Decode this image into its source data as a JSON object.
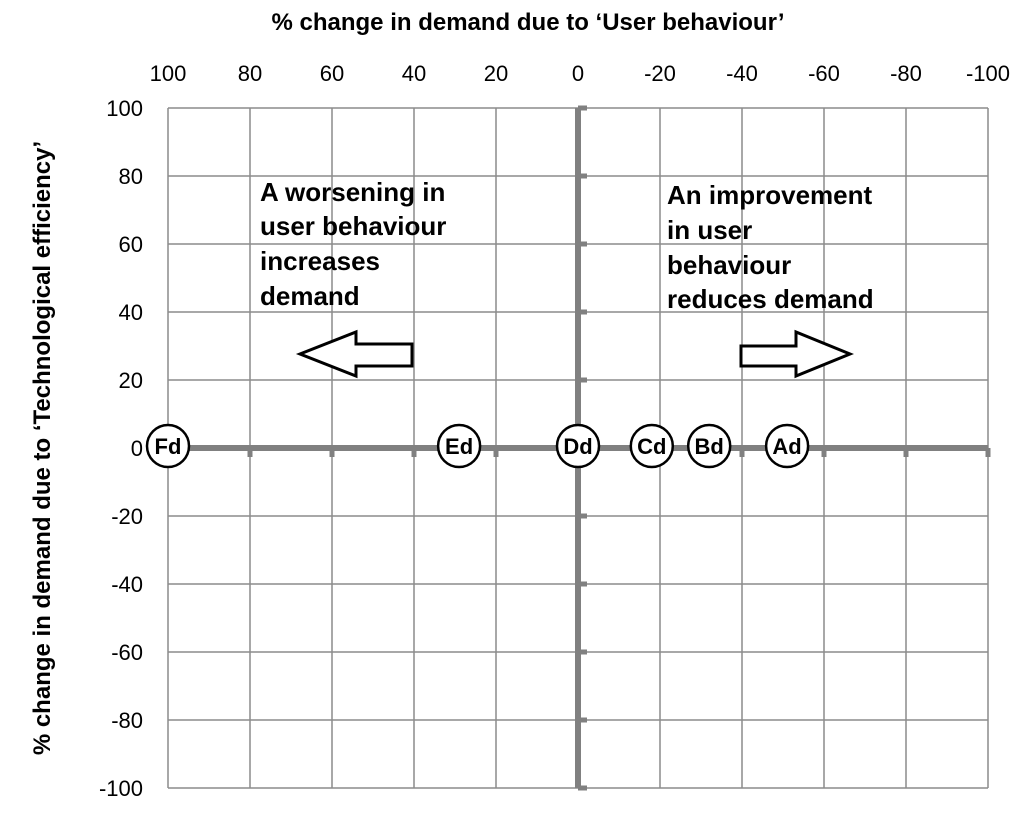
{
  "chart_data": {
    "type": "scatter",
    "xlabel": "% change in demand due to ‘User behaviour’",
    "ylabel": "% change in demand due to ‘Technological efficiency’",
    "xlim": [
      100,
      -100
    ],
    "ylim": [
      -100,
      100
    ],
    "x_ticks": [
      "100",
      "80",
      "60",
      "40",
      "20",
      "0",
      "-20",
      "-40",
      "-60",
      "-80",
      "-100"
    ],
    "y_ticks": [
      "100",
      "80",
      "60",
      "40",
      "20",
      "0",
      "-20",
      "-40",
      "-60",
      "-80",
      "-100"
    ],
    "grid": true,
    "points": [
      {
        "label": "Fd",
        "x": 100,
        "y": 0
      },
      {
        "label": "Ed",
        "x": 29,
        "y": 0
      },
      {
        "label": "Dd",
        "x": 0,
        "y": 0
      },
      {
        "label": "Cd",
        "x": -18,
        "y": 0
      },
      {
        "label": "Bd",
        "x": -32,
        "y": 0
      },
      {
        "label": "Ad",
        "x": -51,
        "y": 0
      }
    ],
    "annotations": [
      {
        "lines": [
          "A worsening in",
          "user behaviour",
          "increases",
          "demand"
        ]
      },
      {
        "lines": [
          "An improvement",
          "in user",
          "behaviour",
          "reduces demand"
        ]
      }
    ]
  }
}
